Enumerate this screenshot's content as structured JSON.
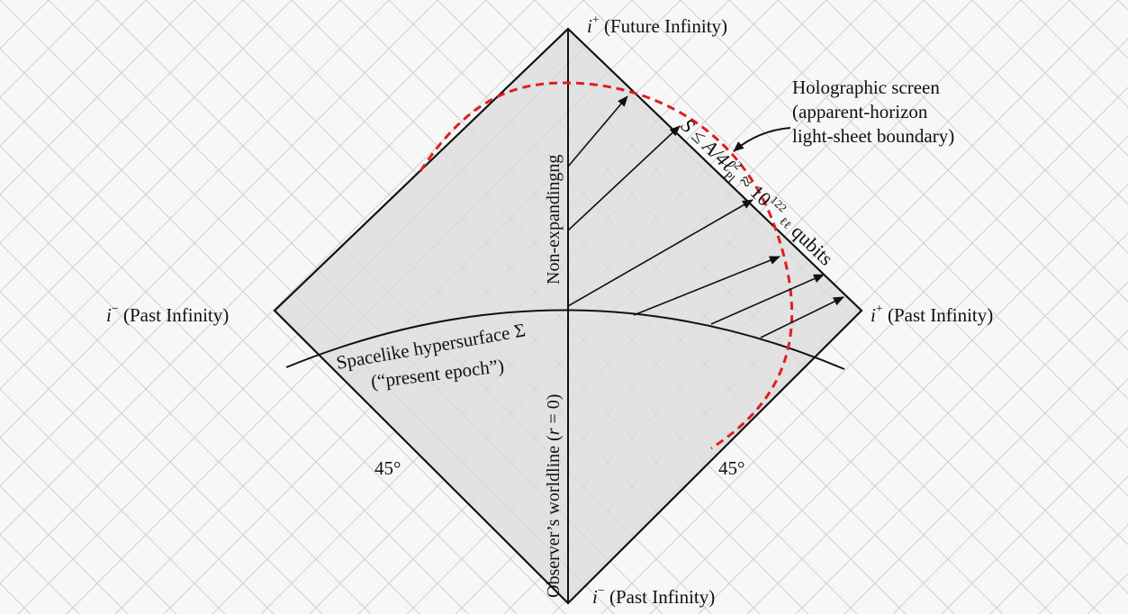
{
  "labels": {
    "top_symbol": "i",
    "top_sup": "+",
    "top_text": " (Future Infinity)",
    "left_symbol": "i",
    "left_sup": "−",
    "left_text": " (Past Infinity)",
    "right_symbol": "i",
    "right_sup": "+",
    "right_text": " (Past Infinity)",
    "bottom_symbol": "i",
    "bottom_sup": "−",
    "bottom_text": " (Past Infinity)",
    "holo_line1": "Holographic screen",
    "holo_line2": "(apparent-horizon",
    "holo_line3": "light-sheet boundary)",
    "non_expanding": "Non-expandingng",
    "worldline_pre": "Observer’s worldline (",
    "worldline_r": "r",
    "worldline_post": " = 0)",
    "hypersurface_line1": "Spacelike hypersurface Σ",
    "hypersurface_line2": "(“present epoch”)",
    "angle_left": "45°",
    "angle_right": "45°",
    "eq_main": "S ≤ A/4ℓ",
    "eq_sup": "2",
    "eq_sub": "Pl",
    "eq_tail": " ≈ 10",
    "eq_exp": "122",
    "eq_garble": "ℓℓ",
    "eq_unit": " qubits"
  },
  "colors": {
    "background": "#f7f7f7",
    "diamond_fill": "#e2e2e2",
    "lines": "#111111",
    "grid": "#d0d0d0",
    "screen": "#e01e1e"
  }
}
